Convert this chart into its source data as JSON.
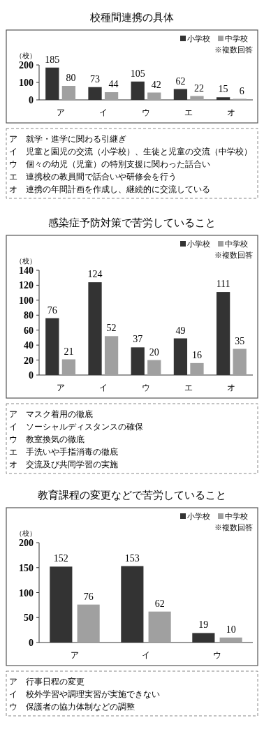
{
  "chart_data": [
    {
      "type": "bar",
      "title": "校種間連携の具体",
      "ylabel": "（校）",
      "categories": [
        "ア",
        "イ",
        "ウ",
        "エ",
        "オ"
      ],
      "series": [
        {
          "name": "小学校",
          "color": "#333333",
          "values": [
            185,
            73,
            105,
            62,
            15
          ]
        },
        {
          "name": "中学校",
          "color": "#a0a0a0",
          "values": [
            80,
            44,
            42,
            22,
            6
          ]
        }
      ],
      "ylim": [
        0,
        200
      ],
      "yticks": [
        0,
        100,
        200
      ],
      "legend": "top right",
      "data_labels": true,
      "annotations": [
        "※複数回答",
        "ア　就学・進学に関わる引継ぎ",
        "イ　児童と園児の交流（小学校）、生徒と児童の交流（中学校）",
        "ウ　個々の幼児（児童）の特別支援に関わった話合い",
        "エ　連携校の教員間で話合いや研修会を行う",
        "オ　連携の年間計画を作成し、継続的に交流している"
      ]
    },
    {
      "type": "bar",
      "title": "感染症予防対策で苦労していること",
      "ylabel": "（校）",
      "categories": [
        "ア",
        "イ",
        "ウ",
        "エ",
        "オ"
      ],
      "series": [
        {
          "name": "小学校",
          "color": "#333333",
          "values": [
            76,
            124,
            37,
            49,
            111
          ]
        },
        {
          "name": "中学校",
          "color": "#a0a0a0",
          "values": [
            21,
            52,
            20,
            16,
            35
          ]
        }
      ],
      "ylim": [
        0,
        140
      ],
      "yticks": [
        0,
        20,
        40,
        60,
        80,
        100,
        120,
        140
      ],
      "legend": "top right",
      "data_labels": true,
      "annotations": [
        "※複数回答",
        "ア　マスク着用の徹底",
        "イ　ソーシャルディスタンスの確保",
        "ウ　教室換気の徹底",
        "エ　手洗いや手指消毒の徹底",
        "オ　交流及び共同学習の実施"
      ]
    },
    {
      "type": "bar",
      "title": "教育課程の変更などで苦労していること",
      "ylabel": "（校）",
      "categories": [
        "ア",
        "イ",
        "ウ"
      ],
      "series": [
        {
          "name": "小学校",
          "color": "#333333",
          "values": [
            152,
            153,
            19
          ]
        },
        {
          "name": "中学校",
          "color": "#a0a0a0",
          "values": [
            76,
            62,
            10
          ]
        }
      ],
      "ylim": [
        0,
        200
      ],
      "yticks": [
        0,
        50,
        100,
        150,
        200
      ],
      "legend": "top right",
      "data_labels": true,
      "annotations": [
        "※複数回答",
        "ア　行事日程の変更",
        "イ　校外学習や調理実習が実施できない",
        "ウ　保護者の協力体制などの調整"
      ]
    }
  ]
}
